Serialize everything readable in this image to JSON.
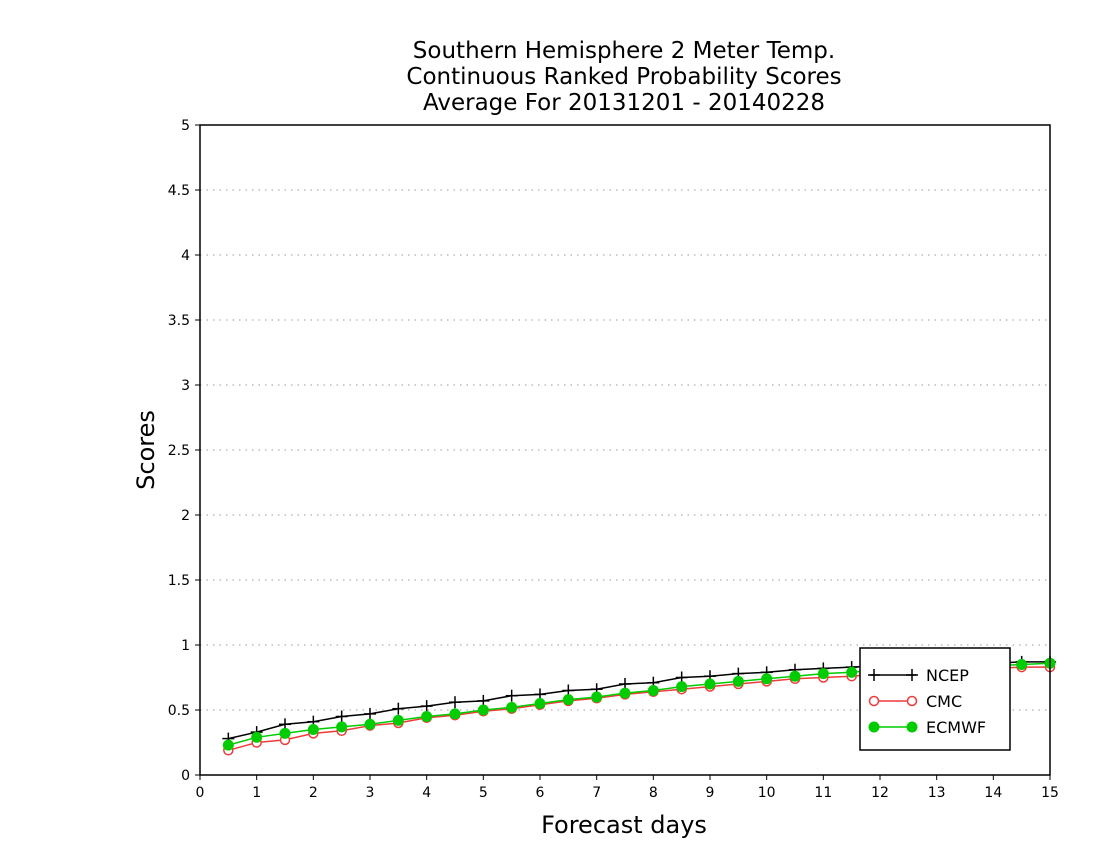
{
  "chart_data": {
    "type": "line",
    "title": [
      "Southern Hemisphere 2 Meter Temp.",
      "Continuous Ranked Probability Scores",
      "Average For 20131201 - 20140228"
    ],
    "xlabel": "Forecast days",
    "ylabel": "Scores",
    "xlim": [
      0,
      15
    ],
    "ylim": [
      0,
      5
    ],
    "xticks": [
      0,
      1,
      2,
      3,
      4,
      5,
      6,
      7,
      8,
      9,
      10,
      11,
      12,
      13,
      14,
      15
    ],
    "yticks": [
      0,
      0.5,
      1,
      1.5,
      2,
      2.5,
      3,
      3.5,
      4,
      4.5,
      5
    ],
    "ytick_labels": [
      "0",
      "0.5",
      "1",
      "1.5",
      "2",
      "2.5",
      "3",
      "3.5",
      "4",
      "4.5",
      "5"
    ],
    "grid": "horizontal-dotted",
    "legend_position": "bottom-right",
    "x": [
      0.5,
      1,
      1.5,
      2,
      2.5,
      3,
      3.5,
      4,
      4.5,
      5,
      5.5,
      6,
      6.5,
      7,
      7.5,
      8,
      8.5,
      9,
      9.5,
      10,
      10.5,
      11,
      11.5,
      12,
      12.5,
      13,
      13.5,
      14,
      14.5,
      15
    ],
    "series": [
      {
        "name": "NCEP",
        "color": "#000000",
        "marker": "plus",
        "values": [
          0.28,
          0.33,
          0.39,
          0.41,
          0.45,
          0.47,
          0.51,
          0.53,
          0.56,
          0.57,
          0.61,
          0.62,
          0.65,
          0.66,
          0.7,
          0.71,
          0.75,
          0.76,
          0.78,
          0.79,
          0.81,
          0.82,
          0.83,
          0.84,
          0.84,
          0.85,
          0.86,
          0.86,
          0.87,
          0.87
        ]
      },
      {
        "name": "CMC",
        "color": "#ee3b3b",
        "marker": "open-circle",
        "values": [
          0.19,
          0.25,
          0.27,
          0.32,
          0.34,
          0.38,
          0.4,
          0.44,
          0.46,
          0.49,
          0.51,
          0.54,
          0.57,
          0.59,
          0.62,
          0.64,
          0.66,
          0.68,
          0.7,
          0.72,
          0.74,
          0.75,
          0.76,
          0.78,
          0.79,
          0.8,
          0.81,
          0.82,
          0.83,
          0.83
        ]
      },
      {
        "name": "ECMWF",
        "color": "#00cc00",
        "marker": "filled-circle",
        "values": [
          0.23,
          0.29,
          0.32,
          0.35,
          0.37,
          0.39,
          0.42,
          0.45,
          0.47,
          0.5,
          0.52,
          0.55,
          0.58,
          0.6,
          0.63,
          0.65,
          0.68,
          0.7,
          0.72,
          0.74,
          0.76,
          0.78,
          0.79,
          0.81,
          0.82,
          0.83,
          0.84,
          0.84,
          0.85,
          0.86
        ]
      }
    ]
  }
}
